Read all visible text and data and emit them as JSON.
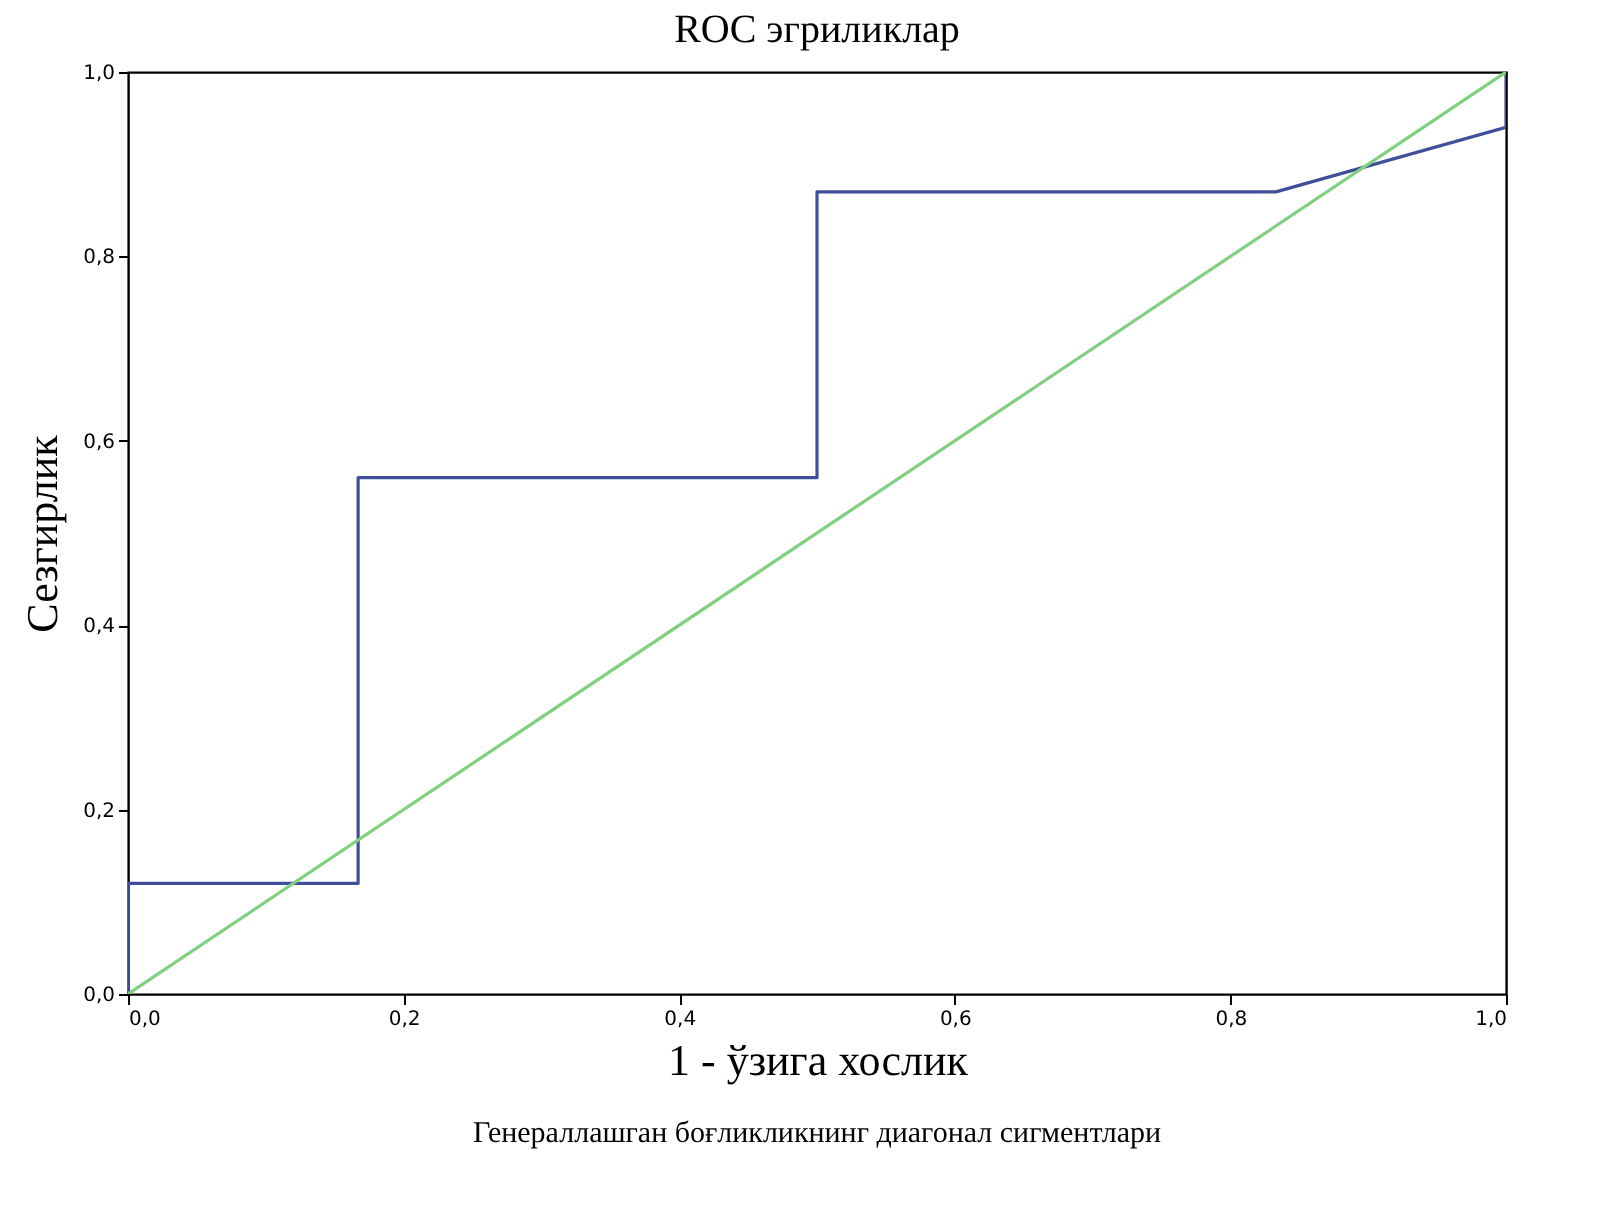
{
  "chart_data": {
    "type": "line",
    "title": "ROC эгриликлар",
    "xlabel": "1 - ўзига хослик",
    "ylabel": "Сезгирлик",
    "annotations": [
      "Генераллашган боғликликнинг диагонал сигментлари"
    ],
    "series": [
      {
        "color": "#3f4f9a",
        "x": [
          0,
          0,
          0.167,
          0.167,
          0.5,
          0.5,
          0.833,
          1,
          1
        ],
        "values": [
          0,
          0.12,
          0.12,
          0.56,
          0.56,
          0.87,
          0.87,
          0.94,
          1
        ]
      },
      {
        "color": "#7fd17f",
        "x": [
          0,
          1
        ],
        "values": [
          0,
          1
        ]
      }
    ],
    "xlim": [
      0,
      1
    ],
    "ylim": [
      0,
      1
    ],
    "xticks": [
      {
        "value": 0,
        "label": "0,0"
      },
      {
        "value": 0.2,
        "label": "0,2"
      },
      {
        "value": 0.4,
        "label": "0,4"
      },
      {
        "value": 0.6,
        "label": "0,6"
      },
      {
        "value": 0.8,
        "label": "0,8"
      },
      {
        "value": 1,
        "label": "1,0"
      }
    ],
    "yticks": [
      {
        "value": 0,
        "label": "0,0"
      },
      {
        "value": 0.2,
        "label": "0,2"
      },
      {
        "value": 0.4,
        "label": "0,4"
      },
      {
        "value": 0.6,
        "label": "0,6"
      },
      {
        "value": 0.8,
        "label": "0,8"
      },
      {
        "value": 1,
        "label": "1,0"
      }
    ],
    "grid": false,
    "legend": false,
    "marker": "none",
    "line_style": "solid"
  }
}
